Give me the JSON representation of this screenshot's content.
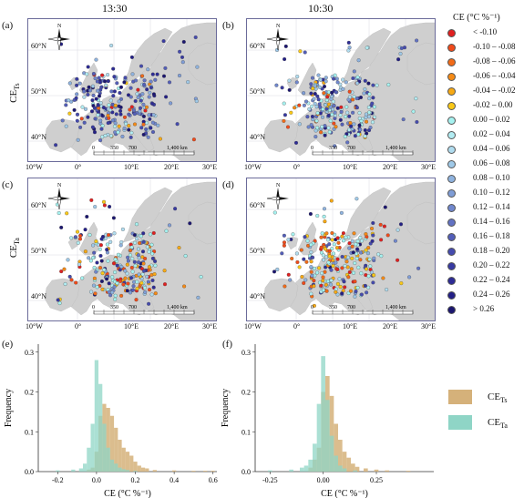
{
  "columns": {
    "left": "13:30",
    "right": "10:30"
  },
  "panels": {
    "a": "(a)",
    "b": "(b)",
    "c": "(c)",
    "d": "(d)",
    "e": "(e)",
    "f": "(f)"
  },
  "rows": {
    "top_main": "CE",
    "top_sub": "Ts",
    "mid_main": "CE",
    "mid_sub": "Ta"
  },
  "map": {
    "lat_labels": [
      "60°N",
      "50°N",
      "40°N"
    ],
    "lon_labels": [
      "10°W",
      "0°",
      "10°E",
      "20°E",
      "30°E"
    ],
    "scalebar": [
      "0",
      "350",
      "700",
      "1,400 km"
    ],
    "north": "N"
  },
  "legend": {
    "title": "CE (°C %⁻¹)",
    "items": [
      {
        "label": "< -0.10",
        "color": "#e02020"
      },
      {
        "label": "-0.10 – -0.08",
        "color": "#f04a1a"
      },
      {
        "label": "-0.08 – -0.06",
        "color": "#f26b18"
      },
      {
        "label": "-0.06 – -0.04",
        "color": "#f58a16"
      },
      {
        "label": "-0.04 – -0.02",
        "color": "#f7a914"
      },
      {
        "label": "-0.02 – 0.00",
        "color": "#f9c818"
      },
      {
        "label": "0.00 – 0.02",
        "color": "#a6f2f0"
      },
      {
        "label": "0.02 – 0.04",
        "color": "#b2ecf2"
      },
      {
        "label": "0.04 – 0.06",
        "color": "#b0dcef"
      },
      {
        "label": "0.06 – 0.08",
        "color": "#9fc9e8"
      },
      {
        "label": "0.08 – 0.10",
        "color": "#8fb3df"
      },
      {
        "label": "0.10 – 0.12",
        "color": "#7f9dd6"
      },
      {
        "label": "0.12 – 0.14",
        "color": "#7087cd"
      },
      {
        "label": "0.14 – 0.16",
        "color": "#6272c3"
      },
      {
        "label": "0.16 – 0.18",
        "color": "#535eb9"
      },
      {
        "label": "0.18 – 0.20",
        "color": "#454bae"
      },
      {
        "label": "0.20 – 0.22",
        "color": "#383aa2"
      },
      {
        "label": "0.22 – 0.24",
        "color": "#2d2b95"
      },
      {
        "label": "0.24 – 0.26",
        "color": "#231f86"
      },
      {
        "label": "> 0.26",
        "color": "#1b1670"
      }
    ]
  },
  "histograms": {
    "ylabel": "Frequency",
    "xlabel": "CE (°C %⁻¹)",
    "colors": {
      "ts": "#d5b17a",
      "ta": "#8fd5c6"
    },
    "legend": [
      {
        "main": "CE",
        "sub": "Ts"
      },
      {
        "main": "CE",
        "sub": "Ta"
      }
    ],
    "e": {
      "xticks": [
        "-0.2",
        "0.0",
        "0.2",
        "0.4",
        "0.6"
      ],
      "yticks": [
        "0.0",
        "0.1",
        "0.2",
        "0.3"
      ]
    },
    "f": {
      "xticks": [
        "-0.25",
        "0.00",
        "0.25"
      ],
      "yticks": [
        "0.0",
        "0.1",
        "0.2",
        "0.3"
      ]
    }
  },
  "chart_data": [
    {
      "type": "bar",
      "title": "",
      "xlabel": "CE (°C %⁻¹)",
      "ylabel": "Frequency",
      "xlim": [
        -0.3,
        0.62
      ],
      "ylim": [
        0,
        0.32
      ],
      "bin_width": 0.02,
      "series": [
        {
          "name": "CE Ts",
          "x": [
            -0.04,
            -0.02,
            0.0,
            0.02,
            0.04,
            0.06,
            0.08,
            0.1,
            0.12,
            0.14,
            0.16,
            0.18,
            0.2,
            0.22,
            0.24,
            0.26,
            0.3,
            0.4,
            0.5,
            0.56,
            0.6
          ],
          "values": [
            0.005,
            0.01,
            0.05,
            0.14,
            0.17,
            0.16,
            0.14,
            0.11,
            0.08,
            0.06,
            0.05,
            0.04,
            0.025,
            0.015,
            0.01,
            0.008,
            0.004,
            0.003,
            0.002,
            0.002,
            0.002
          ]
        },
        {
          "name": "CE Ta",
          "x": [
            -0.2,
            -0.12,
            -0.08,
            -0.06,
            -0.04,
            -0.02,
            0.0,
            0.02,
            0.04,
            0.06,
            0.08,
            0.1,
            0.12,
            0.14,
            0.16,
            0.2
          ],
          "values": [
            0.003,
            0.005,
            0.008,
            0.02,
            0.06,
            0.12,
            0.28,
            0.22,
            0.12,
            0.06,
            0.03,
            0.02,
            0.01,
            0.006,
            0.004,
            0.002
          ]
        }
      ]
    },
    {
      "type": "bar",
      "title": "",
      "xlabel": "CE (°C %⁻¹)",
      "ylabel": "Frequency",
      "xlim": [
        -0.32,
        0.52
      ],
      "ylim": [
        0,
        0.32
      ],
      "bin_width": 0.02,
      "series": [
        {
          "name": "CE Ts",
          "x": [
            -0.06,
            -0.04,
            -0.02,
            0.0,
            0.02,
            0.04,
            0.06,
            0.08,
            0.1,
            0.12,
            0.14,
            0.16,
            0.2,
            0.25,
            0.3,
            0.4
          ],
          "values": [
            0.01,
            0.03,
            0.06,
            0.2,
            0.24,
            0.19,
            0.12,
            0.08,
            0.05,
            0.035,
            0.02,
            0.012,
            0.008,
            0.005,
            0.003,
            0.002
          ]
        },
        {
          "name": "CE Ta",
          "x": [
            -0.25,
            -0.15,
            -0.1,
            -0.08,
            -0.06,
            -0.04,
            -0.02,
            0.0,
            0.02,
            0.04,
            0.06,
            0.08,
            0.1,
            0.15
          ],
          "values": [
            0.003,
            0.005,
            0.01,
            0.015,
            0.03,
            0.07,
            0.17,
            0.29,
            0.18,
            0.09,
            0.04,
            0.015,
            0.008,
            0.003
          ]
        }
      ]
    }
  ]
}
